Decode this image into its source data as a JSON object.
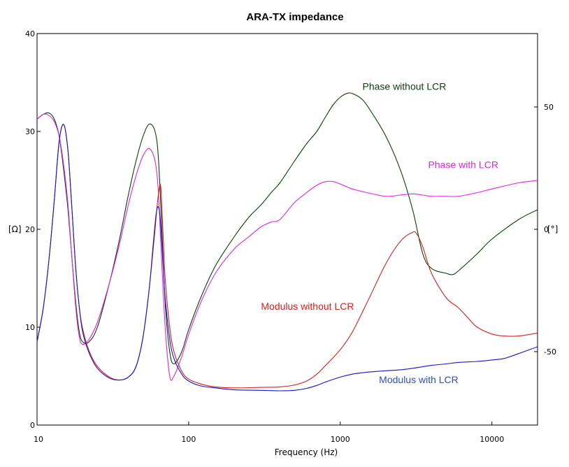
{
  "chart_data": {
    "type": "line",
    "title": "ARA-TX impedance",
    "xlabel": "Frequency (Hz)",
    "ylabel_left": "[Ω]",
    "ylabel_right": "[°]",
    "x_scale": "log",
    "xlim": [
      10,
      20000
    ],
    "ylim_left": [
      0,
      40
    ],
    "ylim_right": [
      -80,
      80
    ],
    "x_ticks": [
      10,
      100,
      1000,
      10000
    ],
    "x_tick_labels": [
      "10",
      "100",
      "1000",
      "10000"
    ],
    "y_left_ticks": [
      0,
      10,
      20,
      30,
      40
    ],
    "y_left_tick_labels": [
      "0",
      "10",
      "20",
      "30",
      "40"
    ],
    "y_right_ticks": [
      -50,
      0,
      50
    ],
    "y_right_tick_labels": [
      "-50",
      "0",
      "50"
    ],
    "grid": false,
    "series": [
      {
        "name": "Phase without LCR",
        "axis": "right",
        "color": "#0a3d0a",
        "points": [
          [
            10,
            45
          ],
          [
            11,
            47
          ],
          [
            12,
            47.5
          ],
          [
            13,
            45
          ],
          [
            14,
            38
          ],
          [
            15,
            24
          ],
          [
            16,
            8
          ],
          [
            17,
            -12
          ],
          [
            18,
            -30
          ],
          [
            19,
            -42
          ],
          [
            20,
            -46
          ],
          [
            22,
            -46
          ],
          [
            25,
            -40
          ],
          [
            30,
            -22
          ],
          [
            35,
            -4
          ],
          [
            40,
            14
          ],
          [
            45,
            28
          ],
          [
            50,
            38
          ],
          [
            55,
            43
          ],
          [
            60,
            40
          ],
          [
            63,
            30
          ],
          [
            66,
            5
          ],
          [
            70,
            -30
          ],
          [
            75,
            -50
          ],
          [
            80,
            -55
          ],
          [
            90,
            -50
          ],
          [
            100,
            -41
          ],
          [
            120,
            -28
          ],
          [
            150,
            -15
          ],
          [
            200,
            -3
          ],
          [
            250,
            5
          ],
          [
            300,
            10
          ],
          [
            350,
            15
          ],
          [
            400,
            19
          ],
          [
            500,
            28
          ],
          [
            600,
            35
          ],
          [
            700,
            40
          ],
          [
            800,
            46
          ],
          [
            900,
            51
          ],
          [
            1000,
            54
          ],
          [
            1100,
            55.5
          ],
          [
            1200,
            55.5
          ],
          [
            1400,
            53
          ],
          [
            1600,
            48
          ],
          [
            2000,
            38
          ],
          [
            2500,
            24
          ],
          [
            3000,
            8
          ],
          [
            3500,
            -10
          ],
          [
            4000,
            -16
          ],
          [
            5000,
            -18
          ],
          [
            5500,
            -18.5
          ],
          [
            6000,
            -17
          ],
          [
            8000,
            -10
          ],
          [
            10000,
            -4
          ],
          [
            15000,
            4
          ],
          [
            20000,
            8
          ]
        ]
      },
      {
        "name": "Phase with LCR",
        "axis": "right",
        "color": "#e820e8",
        "points": [
          [
            10,
            45
          ],
          [
            11,
            47
          ],
          [
            12,
            46.5
          ],
          [
            13,
            44
          ],
          [
            14,
            38
          ],
          [
            15,
            26
          ],
          [
            16,
            10
          ],
          [
            17,
            -12
          ],
          [
            18,
            -32
          ],
          [
            19,
            -44
          ],
          [
            20,
            -47
          ],
          [
            22,
            -45
          ],
          [
            25,
            -38
          ],
          [
            30,
            -22
          ],
          [
            35,
            -6
          ],
          [
            40,
            10
          ],
          [
            45,
            22
          ],
          [
            50,
            30
          ],
          [
            55,
            33
          ],
          [
            60,
            28
          ],
          [
            63,
            16
          ],
          [
            66,
            -10
          ],
          [
            70,
            -40
          ],
          [
            75,
            -60
          ],
          [
            80,
            -60
          ],
          [
            90,
            -52
          ],
          [
            100,
            -43
          ],
          [
            120,
            -30
          ],
          [
            150,
            -18
          ],
          [
            200,
            -8
          ],
          [
            250,
            -3
          ],
          [
            300,
            1
          ],
          [
            350,
            3
          ],
          [
            400,
            4
          ],
          [
            500,
            11
          ],
          [
            600,
            15
          ],
          [
            700,
            18
          ],
          [
            800,
            19.5
          ],
          [
            900,
            19.5
          ],
          [
            1000,
            18.5
          ],
          [
            1200,
            16.5
          ],
          [
            1500,
            15
          ],
          [
            2000,
            13.5
          ],
          [
            2500,
            14
          ],
          [
            3000,
            14.5
          ],
          [
            3500,
            14
          ],
          [
            4000,
            13.5
          ],
          [
            5000,
            13.5
          ],
          [
            6000,
            13.5
          ],
          [
            8000,
            15
          ],
          [
            10000,
            16.5
          ],
          [
            15000,
            19
          ],
          [
            20000,
            20
          ]
        ]
      },
      {
        "name": "Modulus without LCR",
        "axis": "left",
        "color": "#dd1c1c",
        "points": [
          [
            10,
            8.5
          ],
          [
            11,
            12
          ],
          [
            12,
            17
          ],
          [
            13,
            23
          ],
          [
            14,
            29
          ],
          [
            15,
            30.7
          ],
          [
            16,
            28
          ],
          [
            17,
            22
          ],
          [
            18,
            16
          ],
          [
            19,
            12
          ],
          [
            20,
            9.8
          ],
          [
            22,
            7.6
          ],
          [
            25,
            6
          ],
          [
            30,
            4.9
          ],
          [
            35,
            4.6
          ],
          [
            40,
            4.9
          ],
          [
            45,
            6
          ],
          [
            50,
            9
          ],
          [
            55,
            14
          ],
          [
            60,
            20
          ],
          [
            62,
            22.5
          ],
          [
            64,
            24.2
          ],
          [
            65,
            24.6
          ],
          [
            66,
            23.5
          ],
          [
            68,
            19
          ],
          [
            70,
            15
          ],
          [
            75,
            10
          ],
          [
            80,
            7.5
          ],
          [
            90,
            5.5
          ],
          [
            100,
            4.7
          ],
          [
            120,
            4.2
          ],
          [
            150,
            3.9
          ],
          [
            200,
            3.8
          ],
          [
            300,
            3.85
          ],
          [
            400,
            3.9
          ],
          [
            500,
            4.1
          ],
          [
            600,
            4.5
          ],
          [
            700,
            5.2
          ],
          [
            800,
            6.1
          ],
          [
            1000,
            7.7
          ],
          [
            1200,
            9.5
          ],
          [
            1500,
            12.5
          ],
          [
            2000,
            16.5
          ],
          [
            2500,
            18.8
          ],
          [
            3000,
            19.7
          ],
          [
            3200,
            19.5
          ],
          [
            3500,
            18.2
          ],
          [
            4000,
            15.5
          ],
          [
            5000,
            13
          ],
          [
            6000,
            12
          ],
          [
            7000,
            10.9
          ],
          [
            8000,
            10
          ],
          [
            10000,
            9.3
          ],
          [
            12000,
            9.1
          ],
          [
            15000,
            9.1
          ],
          [
            20000,
            9.4
          ]
        ]
      },
      {
        "name": "Modulus with LCR",
        "axis": "left",
        "color": "#1414d2",
        "points": [
          [
            10,
            8.5
          ],
          [
            11,
            12
          ],
          [
            12,
            17
          ],
          [
            13,
            23
          ],
          [
            14,
            29
          ],
          [
            15,
            30.7
          ],
          [
            16,
            28
          ],
          [
            17,
            22
          ],
          [
            18,
            16
          ],
          [
            19,
            12
          ],
          [
            20,
            9.5
          ],
          [
            22,
            7.4
          ],
          [
            25,
            5.8
          ],
          [
            30,
            4.8
          ],
          [
            35,
            4.6
          ],
          [
            40,
            4.9
          ],
          [
            45,
            6
          ],
          [
            50,
            9
          ],
          [
            55,
            14
          ],
          [
            58,
            18
          ],
          [
            61,
            21.5
          ],
          [
            63,
            22.3
          ],
          [
            65,
            21
          ],
          [
            68,
            16
          ],
          [
            70,
            13
          ],
          [
            75,
            8.8
          ],
          [
            80,
            6.8
          ],
          [
            90,
            5.2
          ],
          [
            100,
            4.5
          ],
          [
            120,
            4
          ],
          [
            150,
            3.8
          ],
          [
            200,
            3.6
          ],
          [
            300,
            3.55
          ],
          [
            400,
            3.5
          ],
          [
            500,
            3.55
          ],
          [
            600,
            3.75
          ],
          [
            700,
            4.05
          ],
          [
            800,
            4.4
          ],
          [
            1000,
            4.9
          ],
          [
            1200,
            5.2
          ],
          [
            1500,
            5.4
          ],
          [
            2000,
            5.55
          ],
          [
            2500,
            5.65
          ],
          [
            3000,
            5.8
          ],
          [
            4000,
            6.1
          ],
          [
            5000,
            6.25
          ],
          [
            6000,
            6.4
          ],
          [
            8000,
            6.5
          ],
          [
            10000,
            6.65
          ],
          [
            12000,
            6.8
          ],
          [
            15000,
            7.3
          ],
          [
            20000,
            8
          ]
        ]
      }
    ],
    "annotations": [
      {
        "text": "Phase without LCR",
        "x": 1400,
        "y_axis": "right",
        "y": 57,
        "color": "#0a3d0a"
      },
      {
        "text": "Phase with LCR",
        "x": 3800,
        "y_axis": "right",
        "y": 25,
        "color": "#e820e8"
      },
      {
        "text": "Modulus without LCR",
        "x": 300,
        "y_axis": "left",
        "y": 11.8,
        "color": "#dd1c1c"
      },
      {
        "text": "Modulus with LCR",
        "x": 1800,
        "y_axis": "left",
        "y": 4.3,
        "color": "#2a4fd6"
      }
    ]
  }
}
